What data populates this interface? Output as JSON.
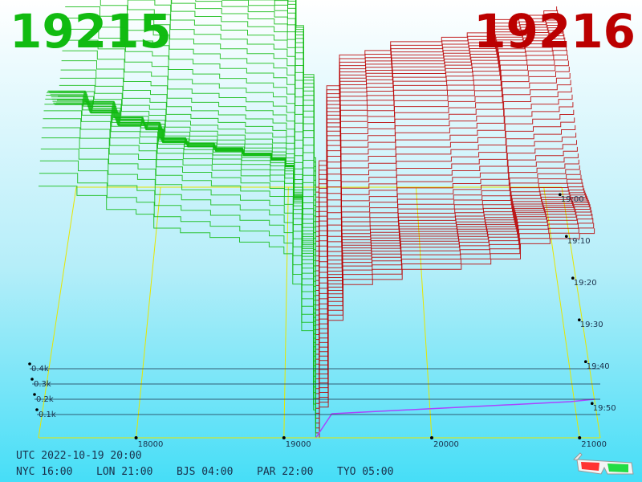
{
  "header": {
    "best_bid": "19215",
    "best_ask": "19216"
  },
  "colors": {
    "bid": "#11bb11",
    "ask": "#bb0000",
    "grid": "#e6e600",
    "depth_axis": "#1a2f4a",
    "volume": "#aa44ff"
  },
  "footer": {
    "utc": "UTC 2022-10-19 20:00",
    "zones": [
      {
        "label": "NYC 16:00"
      },
      {
        "label": "LON 21:00"
      },
      {
        "label": "BJS 04:00"
      },
      {
        "label": "PAR 22:00"
      },
      {
        "label": "TYO 05:00"
      }
    ]
  },
  "icons": {
    "glasses": "anaglyph-3d-glasses-icon"
  },
  "chart_data": {
    "type": "area",
    "x_ticks": [
      "18000",
      "19000",
      "20000",
      "21000"
    ],
    "x_values": [
      18000,
      19000,
      20000,
      21000
    ],
    "depth_ticks": [
      "0.1k",
      "0.2k",
      "0.3k",
      "0.4k"
    ],
    "depth_values": [
      100,
      200,
      300,
      400
    ],
    "time_ticks": [
      "19:00",
      "19:10",
      "19:20",
      "19:30",
      "19:40",
      "19:50"
    ],
    "xlim": [
      17340,
      21140
    ],
    "mid_price": 19215.5,
    "series": [
      {
        "side": "bid",
        "x": [
          17340,
          17460,
          17600,
          17800,
          18000,
          18120,
          18300,
          18500,
          18700,
          18900,
          19000,
          19060,
          19120,
          19200,
          19215
        ],
        "depth": [
          540,
          540,
          520,
          490,
          480,
          450,
          440,
          430,
          420,
          410,
          395,
          330,
          230,
          60,
          0
        ]
      },
      {
        "side": "ask",
        "x": [
          19216,
          19240,
          19300,
          19400,
          19600,
          19800,
          20000,
          20200,
          20400,
          20600,
          20800,
          21000,
          21100
        ],
        "depth": [
          0,
          60,
          230,
          300,
          310,
          330,
          330,
          340,
          350,
          380,
          390,
          400,
          410
        ]
      }
    ]
  }
}
